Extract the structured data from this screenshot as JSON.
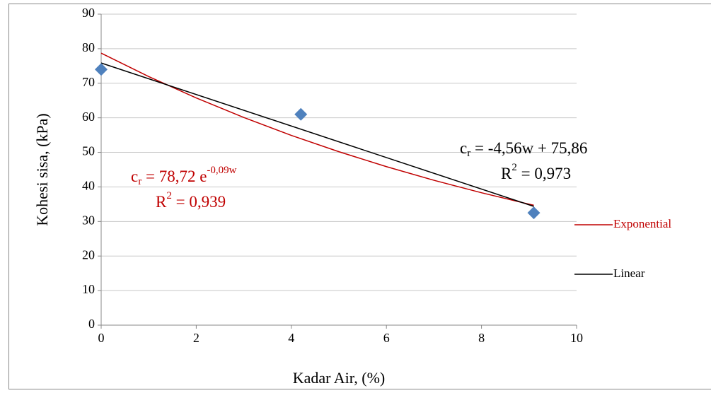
{
  "chart_data": {
    "type": "scatter",
    "y_label": "Kohesi sisa, (kPa)",
    "x_label": "Kadar Air, (%)",
    "xlim": [
      0,
      10
    ],
    "xticks": [
      0,
      2,
      4,
      6,
      8,
      10
    ],
    "ylim": [
      0,
      90
    ],
    "yticks": [
      0,
      10,
      20,
      30,
      40,
      50,
      60,
      70,
      80,
      90
    ],
    "grid": true,
    "legend": "right",
    "series": [
      {
        "type": "scatter",
        "marker": "diamond",
        "color": "#4f81bd",
        "x": [
          0,
          4.2,
          9.1
        ],
        "values": [
          74,
          61,
          32.5
        ]
      },
      {
        "type": "line",
        "name": "Exponential",
        "color": "#c00000",
        "x": [
          0,
          1,
          2,
          3,
          4,
          5,
          6,
          7,
          8,
          9,
          9.1
        ],
        "values": [
          78.72,
          71.94,
          65.75,
          60.09,
          54.91,
          50.19,
          45.87,
          41.92,
          38.31,
          35.01,
          34.7
        ]
      },
      {
        "type": "line",
        "name": "Linear",
        "color": "#000000",
        "x": [
          0,
          9.1
        ],
        "values": [
          75.86,
          34.36
        ]
      }
    ],
    "annotations": [
      [
        "c",
        "r",
        " = 78,72 e",
        "-0,09w"
      ],
      [
        "R",
        "2",
        " = 0,939"
      ],
      [
        "c",
        "r",
        " = -4,56w + 75,86"
      ],
      [
        "R",
        "2",
        " = 0,973"
      ]
    ]
  }
}
